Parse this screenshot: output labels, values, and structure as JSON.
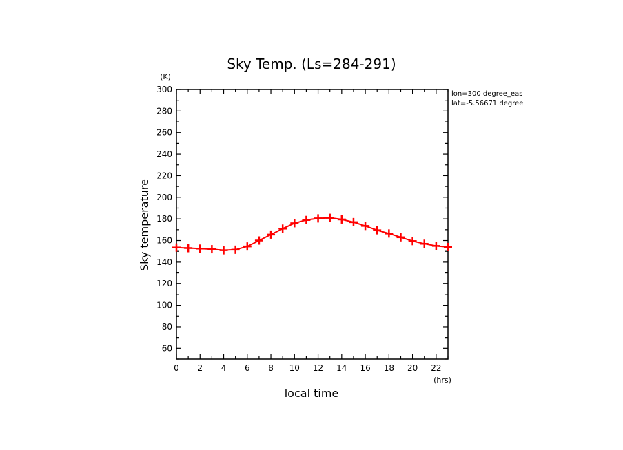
{
  "chart_data": {
    "type": "line",
    "title": "Sky Temp. (Ls=284-291)",
    "xlabel": "local time",
    "ylabel": "Sky temperature",
    "x_unit": "(hrs)",
    "y_unit": "(K)",
    "xlim": [
      0,
      23
    ],
    "ylim": [
      50,
      300
    ],
    "x_ticks": [
      "0",
      "2",
      "4",
      "6",
      "8",
      "10",
      "12",
      "14",
      "16",
      "18",
      "20",
      "22"
    ],
    "y_ticks": [
      "60",
      "80",
      "100",
      "120",
      "140",
      "160",
      "180",
      "200",
      "220",
      "240",
      "260",
      "280",
      "300"
    ],
    "annotations": [
      "lon=300 degree_eas",
      "lat=-5.56671 degree"
    ],
    "grid": false,
    "series": [
      {
        "color": "#ff0000",
        "marker": "plus",
        "x": [
          0,
          1,
          2,
          3,
          4,
          5,
          6,
          7,
          8,
          9,
          10,
          11,
          12,
          13,
          14,
          15,
          16,
          17,
          18,
          19,
          20,
          21,
          22,
          23
        ],
        "y": [
          153.5,
          153,
          152.5,
          152,
          151,
          151.5,
          154.5,
          160,
          165.5,
          171,
          176,
          179,
          180.5,
          181,
          179.5,
          177,
          173.5,
          169.5,
          166.5,
          163,
          159.5,
          157,
          155,
          154
        ]
      }
    ]
  }
}
